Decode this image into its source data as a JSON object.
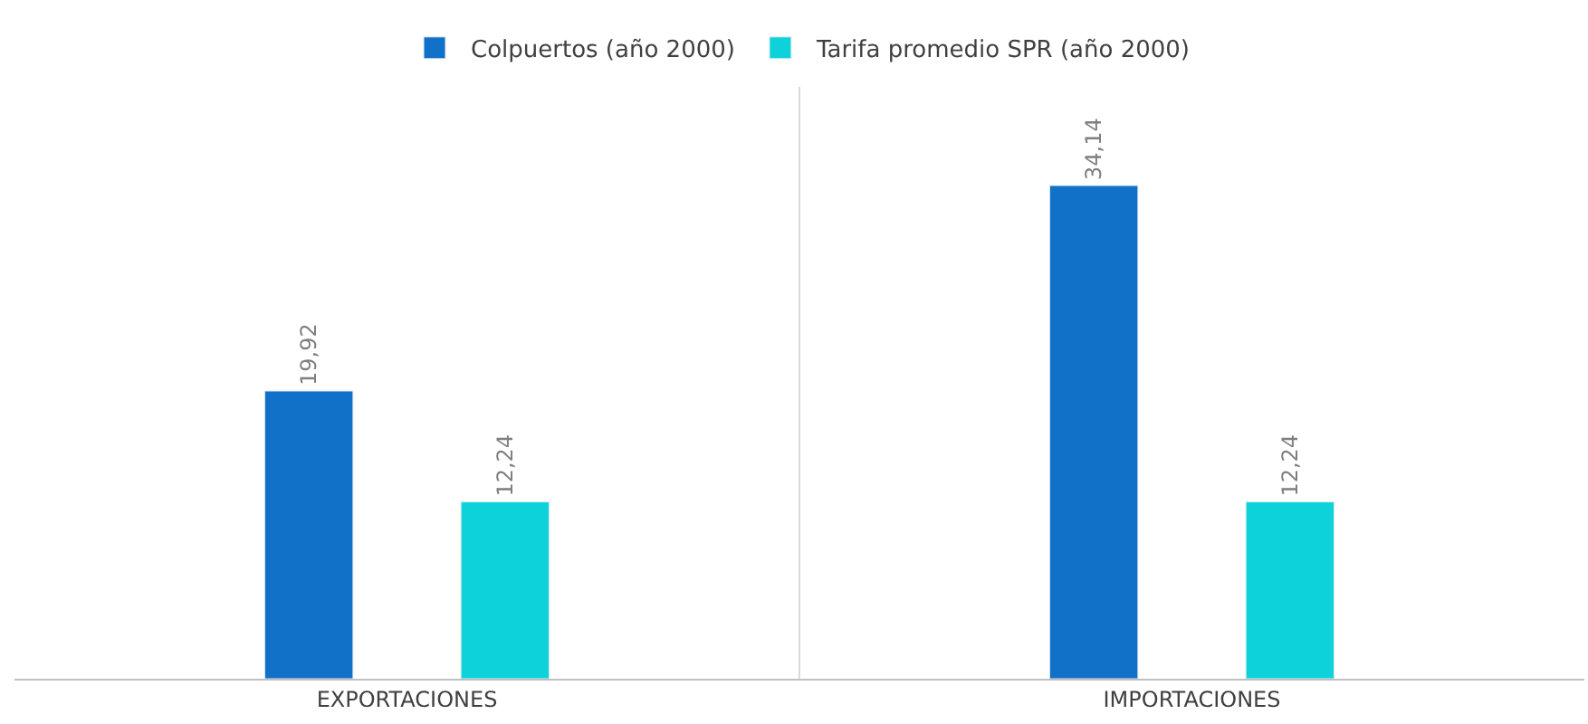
{
  "chart_data": {
    "type": "bar",
    "categories": [
      "EXPORTACIONES",
      "IMPORTACIONES"
    ],
    "series": [
      {
        "name": "Colpuertos (año 2000)",
        "color": "#1170c8",
        "values": [
          19.92,
          34.14
        ],
        "value_labels": [
          "19,92",
          "34,14"
        ]
      },
      {
        "name": "Tarifa promedio SPR (año 2000)",
        "color": "#0ed2da",
        "values": [
          12.24,
          12.24
        ],
        "value_labels": [
          "12,24",
          "12,24"
        ]
      }
    ],
    "grid": "x",
    "legend": "top",
    "tick_labels": "x"
  }
}
